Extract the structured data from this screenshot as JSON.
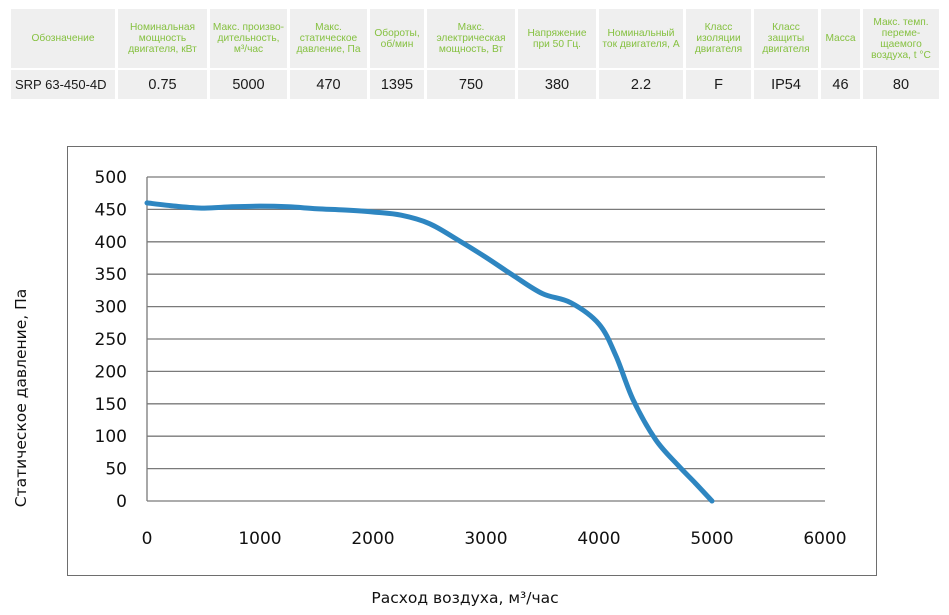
{
  "spec_table": {
    "headers": [
      "Обозначение",
      "Номинальная мощность двигателя, кВт",
      "Макс. произво- дительность, м³/час",
      "Макс. статическое давление, Па",
      "Обороты, об/мин",
      "Макс. электрическая мощность, Вт",
      "Напряжение при 50 Гц.",
      "Номинальный ток двигателя, А",
      "Класс изоляции двигателя",
      "Класс защиты двигателя",
      "Масса",
      "Макс. темп. переме- щаемого воздуха, t °C"
    ],
    "values": [
      "SRP 63-450-4D",
      "0.75",
      "5000",
      "470",
      "1395",
      "750",
      "380",
      "2.2",
      "F",
      "IP54",
      "46",
      "80"
    ]
  },
  "colors": {
    "header_text": "#86c141",
    "cell_background": "#efefef",
    "curve": "#2e86c1",
    "grid": "#7a7a7a"
  },
  "chart_data": {
    "type": "line",
    "title": "",
    "xlabel": "Расход воздуха, м³/час",
    "ylabel": "Статическое давление, Па",
    "xlim": [
      0,
      6000
    ],
    "ylim": [
      0,
      500
    ],
    "x_ticks": [
      0,
      1000,
      2000,
      3000,
      4000,
      5000,
      6000
    ],
    "y_ticks": [
      0,
      50,
      100,
      150,
      200,
      250,
      300,
      350,
      400,
      450,
      500
    ],
    "grid": "horizontal",
    "series": [
      {
        "x": [
          0,
          250,
          500,
          750,
          1000,
          1250,
          1500,
          1750,
          2000,
          2250,
          2500,
          2750,
          3000,
          3250,
          3500,
          3750,
          4000,
          4150,
          4300,
          4500,
          4700,
          4850,
          5000
        ],
        "y": [
          460,
          455,
          452,
          454,
          455,
          454,
          451,
          449,
          446,
          441,
          428,
          403,
          376,
          347,
          320,
          306,
          273,
          224,
          157,
          95,
          55,
          28,
          0
        ]
      }
    ]
  }
}
